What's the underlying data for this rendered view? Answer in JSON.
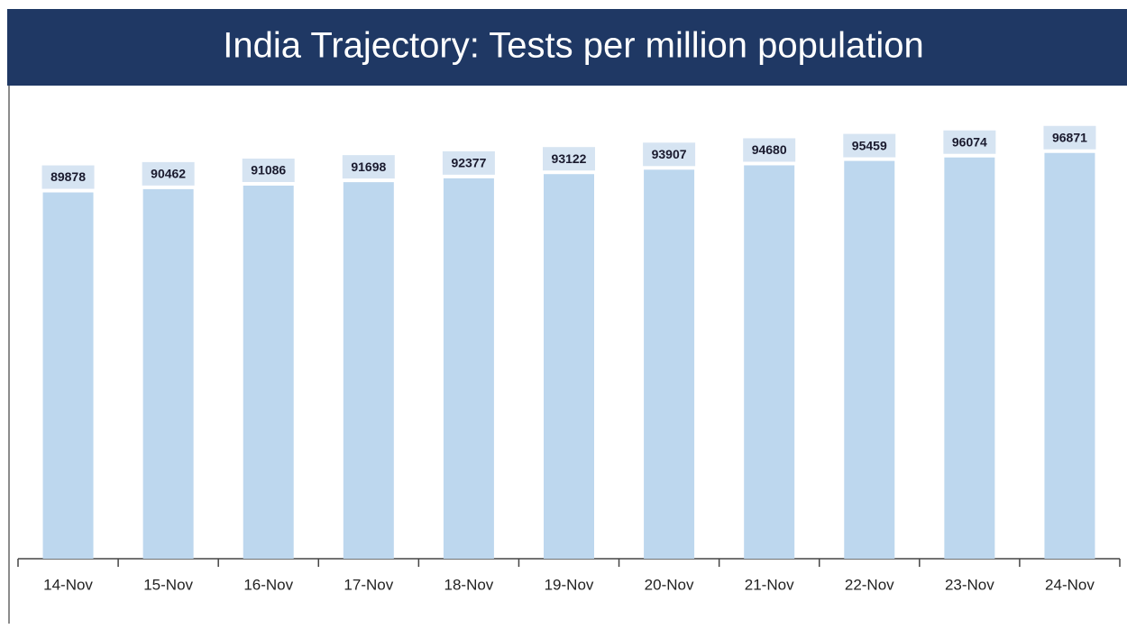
{
  "chart_data": {
    "type": "bar",
    "title": "India Trajectory: Tests per million population",
    "categories": [
      "14-Nov",
      "15-Nov",
      "16-Nov",
      "17-Nov",
      "18-Nov",
      "19-Nov",
      "20-Nov",
      "21-Nov",
      "22-Nov",
      "23-Nov",
      "24-Nov"
    ],
    "values": [
      89878,
      90462,
      91086,
      91698,
      92377,
      93122,
      93907,
      94680,
      95459,
      96074,
      96871
    ],
    "color": "#bdd7ee",
    "ylim": [
      25000,
      108000
    ]
  }
}
